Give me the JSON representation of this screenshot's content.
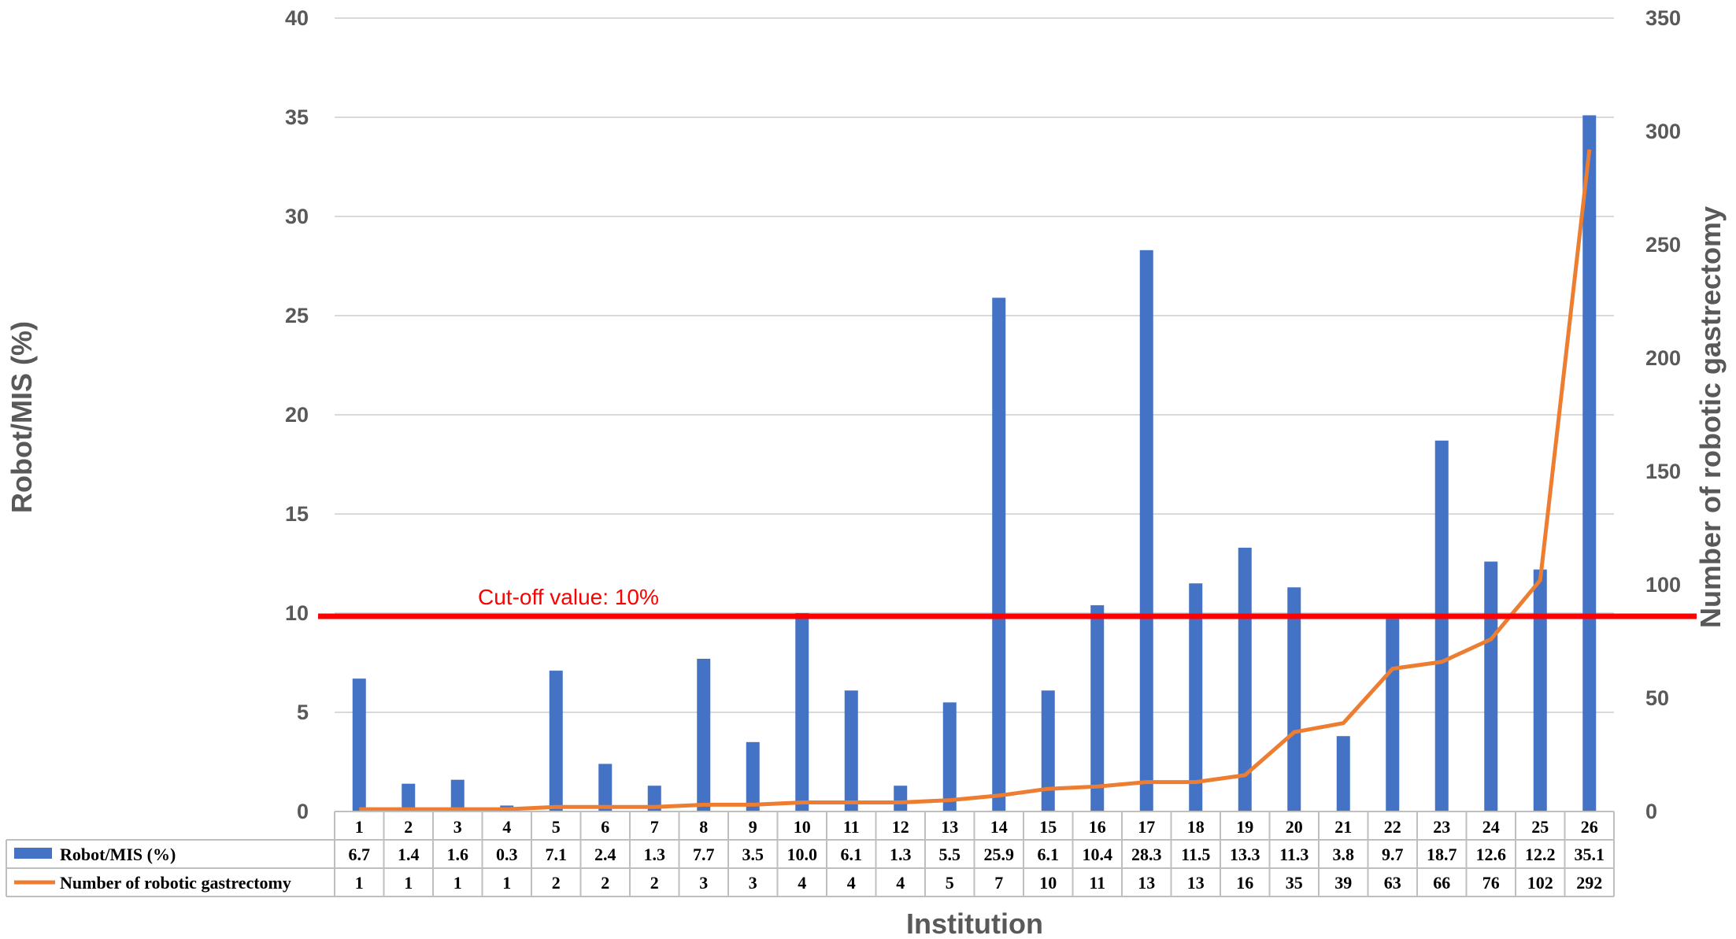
{
  "chart_data": {
    "type": "bar",
    "categories": [
      "1",
      "2",
      "3",
      "4",
      "5",
      "6",
      "7",
      "8",
      "9",
      "10",
      "11",
      "12",
      "13",
      "14",
      "15",
      "16",
      "17",
      "18",
      "19",
      "20",
      "21",
      "22",
      "23",
      "24",
      "25",
      "26"
    ],
    "series": [
      {
        "name": "Robot/MIS (%)",
        "type": "bar",
        "axis": "left",
        "color": "#4472c4",
        "values": [
          6.7,
          1.4,
          1.6,
          0.3,
          7.1,
          2.4,
          1.3,
          7.7,
          3.5,
          10.0,
          6.1,
          1.3,
          5.5,
          25.9,
          6.1,
          10.4,
          28.3,
          11.5,
          13.3,
          11.3,
          3.8,
          9.7,
          18.7,
          12.6,
          12.2,
          35.1
        ],
        "labels": [
          "6.7",
          "1.4",
          "1.6",
          "0.3",
          "7.1",
          "2.4",
          "1.3",
          "7.7",
          "3.5",
          "10.0",
          "6.1",
          "1.3",
          "5.5",
          "25.9",
          "6.1",
          "10.4",
          "28.3",
          "11.5",
          "13.3",
          "11.3",
          "3.8",
          "9.7",
          "18.7",
          "12.6",
          "12.2",
          "35.1"
        ]
      },
      {
        "name": "Number of robotic gastrectomy",
        "type": "line",
        "axis": "right",
        "color": "#ed7d31",
        "values": [
          1,
          1,
          1,
          1,
          2,
          2,
          2,
          3,
          3,
          4,
          4,
          4,
          5,
          7,
          10,
          11,
          13,
          13,
          16,
          35,
          39,
          63,
          66,
          76,
          102,
          292
        ],
        "labels": [
          "1",
          "1",
          "1",
          "1",
          "2",
          "2",
          "2",
          "3",
          "3",
          "4",
          "4",
          "4",
          "5",
          "7",
          "10",
          "11",
          "13",
          "13",
          "16",
          "35",
          "39",
          "63",
          "66",
          "76",
          "102",
          "292"
        ]
      }
    ],
    "ylabel": "Robot/MIS (%)",
    "y2label": "Number of robotic gastrectomy",
    "xlabel": "Institution",
    "ylim": [
      0,
      40
    ],
    "y2lim": [
      0,
      350
    ],
    "yticks": [
      "0",
      "5",
      "10",
      "15",
      "20",
      "25",
      "30",
      "35",
      "40"
    ],
    "y2ticks": [
      "0",
      "50",
      "100",
      "150",
      "200",
      "250",
      "300",
      "350"
    ],
    "reference_line": {
      "value": 10,
      "label": "Cut-off value: 10%",
      "color": "#ff0000"
    },
    "grid": true,
    "legend": "data table below x-axis"
  }
}
